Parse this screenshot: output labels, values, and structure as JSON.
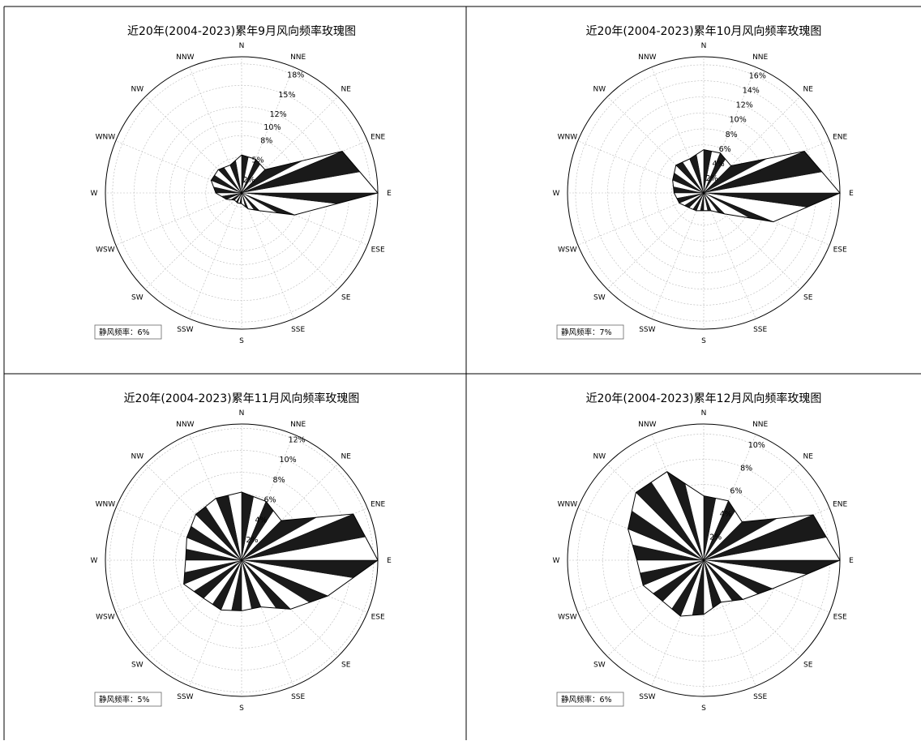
{
  "chart_data": [
    {
      "type": "wind-rose",
      "title": "近20年(2004-2023)累年9月风向频率玫瑰图",
      "directions": [
        "N",
        "NNE",
        "NE",
        "ENE",
        "E",
        "ESE",
        "SE",
        "SSE",
        "S",
        "SSW",
        "SW",
        "WSW",
        "W",
        "WNW",
        "NW",
        "NNW"
      ],
      "values": [
        5.3,
        5.1,
        4.6,
        15.2,
        19.0,
        8.0,
        3.5,
        2.4,
        1.5,
        1.5,
        1.4,
        2.3,
        3.6,
        4.6,
        4.6,
        4.2
      ],
      "radial_ticks": [
        "2%",
        "5%",
        "8%",
        "10%",
        "12%",
        "15%",
        "18%"
      ],
      "rmax": 19.0,
      "calm_label": "静风频率：6%"
    },
    {
      "type": "wind-rose",
      "title": "近20年(2004-2023)累年10月风向频率玫瑰图",
      "directions": [
        "N",
        "NNE",
        "NE",
        "ENE",
        "E",
        "ESE",
        "SE",
        "SSE",
        "S",
        "SSW",
        "SW",
        "WSW",
        "W",
        "WNW",
        "NW",
        "NNW"
      ],
      "values": [
        5.4,
        5.4,
        4.8,
        13.6,
        17.0,
        9.4,
        3.7,
        2.4,
        2.2,
        2.4,
        2.6,
        3.3,
        3.7,
        4.2,
        4.9,
        4.6
      ],
      "radial_ticks": [
        "2%",
        "4%",
        "6%",
        "8%",
        "10%",
        "12%",
        "14%",
        "16%"
      ],
      "rmax": 17.0,
      "calm_label": "静风频率：7%"
    },
    {
      "type": "wind-rose",
      "title": "近20年(2004-2023)累年11月风向频率玫瑰图",
      "directions": [
        "N",
        "NNE",
        "NE",
        "ENE",
        "E",
        "ESE",
        "SE",
        "SSE",
        "S",
        "SSW",
        "SW",
        "WSW",
        "W",
        "WNW",
        "NW",
        "NNW"
      ],
      "values": [
        6.2,
        5.8,
        5.1,
        11.0,
        12.4,
        8.5,
        6.3,
        4.6,
        4.6,
        4.9,
        4.9,
        5.7,
        5.1,
        5.4,
        5.9,
        6.1
      ],
      "radial_ticks": [
        "2%",
        "4%",
        "6%",
        "8%",
        "10%",
        "12%"
      ],
      "rmax": 12.4,
      "calm_label": "静风频率：5%"
    },
    {
      "type": "wind-rose",
      "title": "近20年(2004-2023)累年12月风向频率玫瑰图",
      "directions": [
        "N",
        "NNE",
        "NE",
        "ENE",
        "E",
        "ESE",
        "SE",
        "SSE",
        "S",
        "SSW",
        "SW",
        "WSW",
        "W",
        "WNW",
        "NW",
        "NNW"
      ],
      "values": [
        5.1,
        5.1,
        4.3,
        9.4,
        10.8,
        5.9,
        4.4,
        3.6,
        4.3,
        4.8,
        4.6,
        5.2,
        5.3,
        6.5,
        7.6,
        7.6
      ],
      "radial_ticks": [
        "2%",
        "4%",
        "6%",
        "8%",
        "10%"
      ],
      "rmax": 10.8,
      "calm_label": "静风频率：6%"
    }
  ]
}
